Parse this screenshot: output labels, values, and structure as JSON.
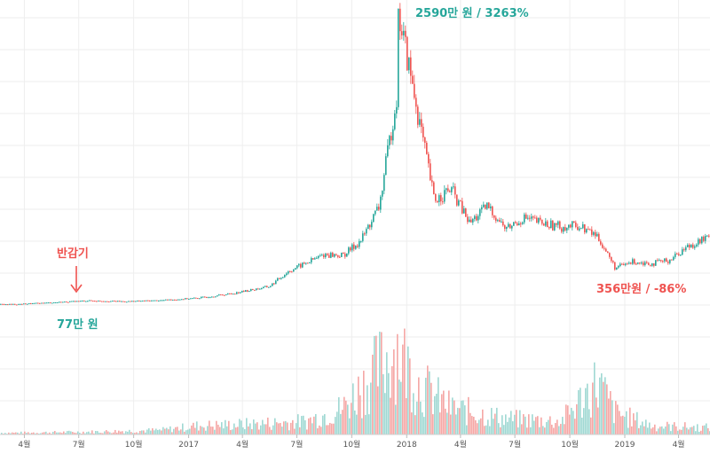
{
  "chart_data": {
    "type": "candlestick",
    "title": "",
    "xlabel": "",
    "ylabel": "",
    "grid": true,
    "colors": {
      "up": "#26a69a",
      "down": "#ef5350",
      "up_volume": "#9fd8d3",
      "down_volume": "#f5a7a5",
      "grid": "#eeeeee"
    },
    "x_tick_labels": [
      "4월",
      "7월",
      "10월",
      "2017",
      "4월",
      "7월",
      "10월",
      "2018",
      "4월",
      "7월",
      "10월",
      "2019",
      "4월"
    ],
    "price_series": {
      "name": "",
      "unit": "만 원",
      "x": [
        "2016-03",
        "2016-05",
        "2016-07",
        "2016-09",
        "2016-11",
        "2017-01",
        "2017-03",
        "2017-05",
        "2017-06",
        "2017-08",
        "2017-09",
        "2017-10",
        "2017-11",
        "2017-12",
        "2017-12-17",
        "2018-01",
        "2018-02",
        "2018-03",
        "2018-04",
        "2018-05",
        "2018-06",
        "2018-07",
        "2018-08",
        "2018-09",
        "2018-10",
        "2018-11",
        "2018-12",
        "2019-01",
        "2019-02",
        "2019-03",
        "2019-04",
        "2019-05"
      ],
      "values": [
        45,
        60,
        77,
        70,
        80,
        100,
        140,
        200,
        330,
        480,
        470,
        600,
        900,
        1900,
        2590,
        1800,
        950,
        1050,
        750,
        900,
        700,
        800,
        750,
        720,
        730,
        640,
        360,
        420,
        400,
        430,
        550,
        620
      ]
    },
    "volume_series": {
      "name": "",
      "x": [
        "2016-03",
        "2016-07",
        "2016-11",
        "2017-01",
        "2017-04",
        "2017-07",
        "2017-09",
        "2017-12",
        "2018-01",
        "2018-03",
        "2018-06",
        "2018-09",
        "2018-11",
        "2018-12",
        "2019-02",
        "2019-05"
      ],
      "values": [
        2,
        3,
        5,
        10,
        12,
        15,
        30,
        100,
        60,
        30,
        18,
        15,
        60,
        25,
        10,
        8
      ]
    },
    "annotations": [
      {
        "label": "halving",
        "text": "반감기",
        "x": "2016-07",
        "color": "#ef5350"
      },
      {
        "label": "low",
        "text": "77만 원",
        "x": "2016-07",
        "color": "#26a69a"
      },
      {
        "label": "peak",
        "text": "2590만 원 / 3263%",
        "x": "2017-12-17",
        "color": "#26a69a"
      },
      {
        "label": "bottom",
        "text": "356만원 / -86%",
        "x": "2018-12",
        "color": "#ef5350"
      }
    ]
  }
}
